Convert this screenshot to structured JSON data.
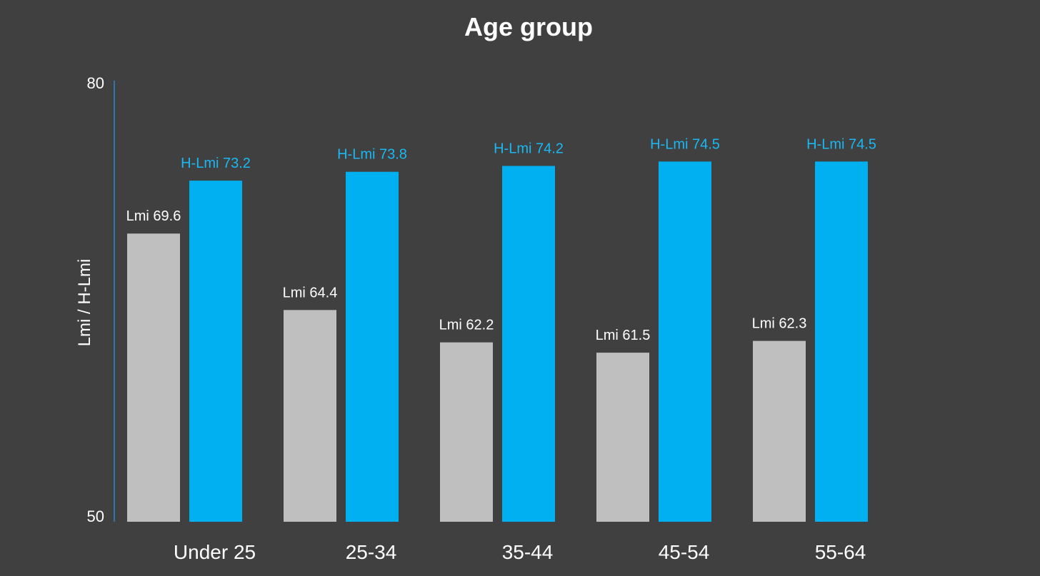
{
  "chart_data": {
    "type": "bar",
    "title": "Age group",
    "ylabel": "Lmi / H-Lmi",
    "ylim": [
      50,
      80
    ],
    "yticks": [
      "80",
      "50"
    ],
    "categories": [
      "Under 25",
      "25-34",
      "35-44",
      "45-54",
      "55-64"
    ],
    "series": [
      {
        "values": [
          69.6,
          64.4,
          62.2,
          61.5,
          62.3
        ],
        "labels": [
          "Lmi 69.6",
          "Lmi 64.4",
          "Lmi 62.2",
          "Lmi 61.5",
          "Lmi 62.3"
        ],
        "color": "#bfbfbf",
        "label_color": "#ffffff"
      },
      {
        "values": [
          73.2,
          73.8,
          74.2,
          74.5,
          74.5
        ],
        "labels": [
          "H-Lmi 73.2",
          "H-Lmi 73.8",
          "H-Lmi 74.2",
          "H-Lmi 74.5",
          "H-Lmi 74.5"
        ],
        "color": "#00b0f0",
        "label_color": "#1ab8f2"
      }
    ],
    "axis_color": "#2e75b6",
    "background": "#404040",
    "grid": false,
    "legend": "none"
  }
}
